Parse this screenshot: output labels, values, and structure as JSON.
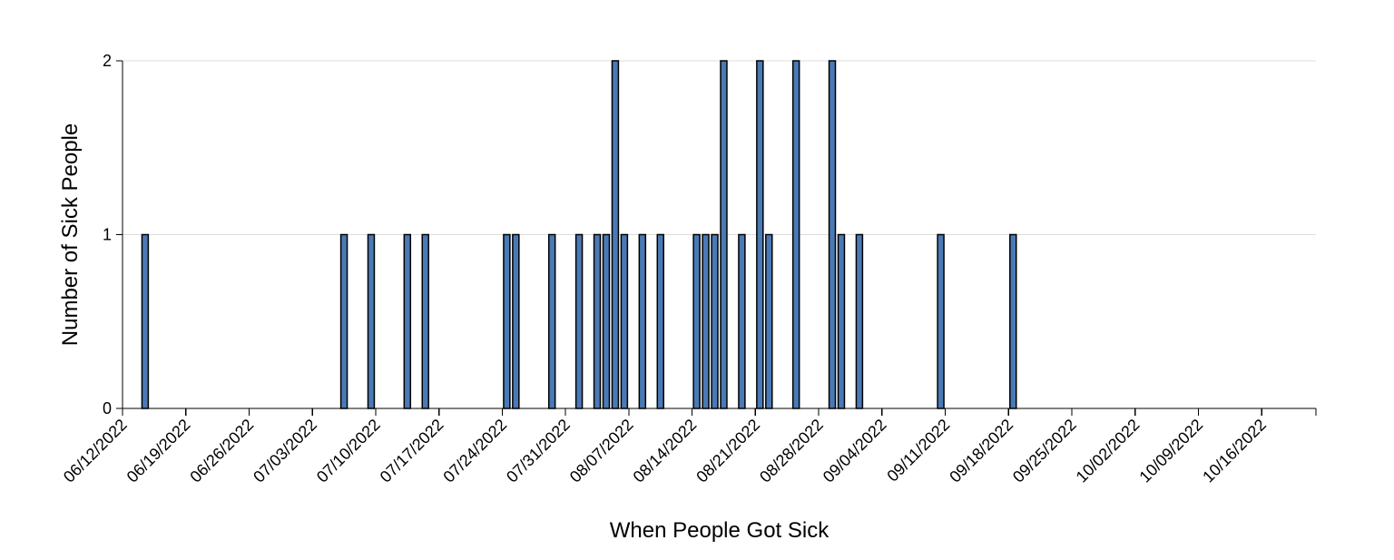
{
  "chart_data": {
    "type": "bar",
    "title": "",
    "xlabel": "When People Got Sick",
    "ylabel": "Number of Sick People",
    "ylim": [
      0,
      2
    ],
    "y_ticks": [
      "0",
      "1",
      "2"
    ],
    "xlim": [
      "2022-06-12",
      "2022-10-22"
    ],
    "x_ticks": [
      "06/12/2022",
      "06/19/2022",
      "06/26/2022",
      "07/03/2022",
      "07/10/2022",
      "07/17/2022",
      "07/24/2022",
      "07/31/2022",
      "08/07/2022",
      "08/14/2022",
      "08/21/2022",
      "08/28/2022",
      "09/04/2022",
      "09/11/2022",
      "09/18/2022",
      "09/25/2022",
      "10/02/2022",
      "10/09/2022",
      "10/16/2022"
    ],
    "grid": true,
    "bar_color": "#4a7ab5",
    "x": [
      "2022-06-14",
      "2022-07-06",
      "2022-07-09",
      "2022-07-13",
      "2022-07-15",
      "2022-07-24",
      "2022-07-25",
      "2022-07-29",
      "2022-08-01",
      "2022-08-03",
      "2022-08-04",
      "2022-08-05",
      "2022-08-06",
      "2022-08-08",
      "2022-08-10",
      "2022-08-14",
      "2022-08-15",
      "2022-08-16",
      "2022-08-17",
      "2022-08-19",
      "2022-08-21",
      "2022-08-22",
      "2022-08-25",
      "2022-08-29",
      "2022-08-30",
      "2022-09-01",
      "2022-09-10",
      "2022-09-18"
    ],
    "values": [
      1,
      1,
      1,
      1,
      1,
      1,
      1,
      1,
      1,
      1,
      1,
      2,
      1,
      1,
      1,
      1,
      1,
      1,
      2,
      1,
      2,
      1,
      2,
      2,
      1,
      1,
      1,
      1
    ]
  }
}
